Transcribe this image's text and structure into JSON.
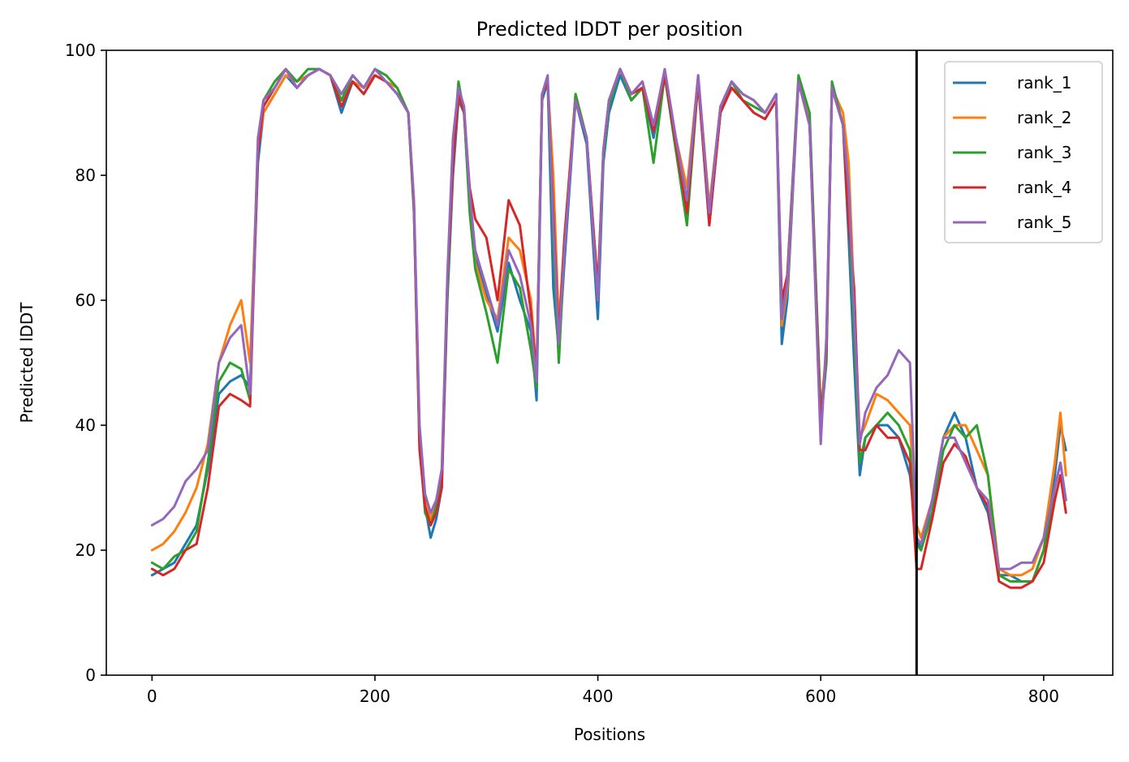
{
  "chart_data": {
    "type": "line",
    "title": "Predicted lDDT per position",
    "xlabel": "Positions",
    "ylabel": "Predicted lDDT",
    "xlim": [
      -41,
      862
    ],
    "ylim": [
      0,
      100
    ],
    "xticks": [
      0,
      200,
      400,
      600,
      800
    ],
    "yticks": [
      0,
      20,
      40,
      60,
      80,
      100
    ],
    "grid": false,
    "legend_position": "top-right",
    "vline": 686,
    "series": [
      {
        "name": "rank_1",
        "color": "#1f77b4",
        "x": [
          0,
          10,
          20,
          30,
          40,
          50,
          60,
          70,
          80,
          88,
          95,
          100,
          110,
          120,
          130,
          140,
          150,
          160,
          170,
          180,
          190,
          200,
          210,
          220,
          230,
          235,
          240,
          245,
          250,
          255,
          260,
          265,
          270,
          275,
          280,
          285,
          290,
          300,
          310,
          320,
          330,
          340,
          345,
          350,
          355,
          360,
          365,
          370,
          380,
          390,
          400,
          405,
          410,
          420,
          430,
          440,
          450,
          460,
          470,
          480,
          490,
          500,
          510,
          520,
          530,
          540,
          550,
          560,
          565,
          570,
          580,
          590,
          600,
          605,
          610,
          620,
          625,
          630,
          635,
          640,
          650,
          660,
          670,
          680,
          686,
          690,
          700,
          710,
          720,
          730,
          740,
          750,
          760,
          770,
          780,
          790,
          800,
          810,
          815,
          820
        ],
        "y": [
          16,
          17,
          18,
          21,
          24,
          33,
          45,
          47,
          48,
          46,
          82,
          90,
          93,
          96,
          94,
          96,
          97,
          96,
          90,
          95,
          93,
          96,
          95,
          93,
          90,
          75,
          38,
          27,
          22,
          25,
          30,
          60,
          80,
          92,
          90,
          75,
          67,
          61,
          55,
          66,
          60,
          55,
          44,
          92,
          95,
          62,
          52,
          66,
          92,
          85,
          57,
          82,
          90,
          96,
          92,
          94,
          86,
          96,
          84,
          75,
          95,
          72,
          90,
          94,
          92,
          90,
          89,
          92,
          53,
          60,
          95,
          88,
          40,
          50,
          94,
          88,
          70,
          50,
          32,
          38,
          40,
          40,
          38,
          32,
          22,
          20,
          28,
          38,
          42,
          38,
          30,
          26,
          16,
          16,
          15,
          15,
          20,
          32,
          40,
          36
        ]
      },
      {
        "name": "rank_2",
        "color": "#ff7f0e",
        "x": [
          0,
          10,
          20,
          30,
          40,
          50,
          60,
          70,
          80,
          88,
          95,
          100,
          110,
          120,
          130,
          140,
          150,
          160,
          170,
          180,
          190,
          200,
          210,
          220,
          230,
          235,
          240,
          245,
          250,
          255,
          260,
          265,
          270,
          275,
          280,
          285,
          290,
          300,
          310,
          320,
          330,
          340,
          345,
          350,
          355,
          360,
          365,
          370,
          380,
          390,
          400,
          405,
          410,
          420,
          430,
          440,
          450,
          460,
          470,
          480,
          490,
          500,
          510,
          520,
          530,
          540,
          550,
          560,
          565,
          570,
          580,
          590,
          600,
          605,
          610,
          620,
          625,
          630,
          635,
          640,
          650,
          660,
          670,
          680,
          686,
          690,
          700,
          710,
          720,
          730,
          740,
          750,
          760,
          770,
          780,
          790,
          800,
          810,
          815,
          820
        ],
        "y": [
          20,
          21,
          23,
          26,
          30,
          37,
          50,
          56,
          60,
          50,
          84,
          90,
          93,
          96,
          95,
          96,
          97,
          96,
          92,
          95,
          94,
          96,
          95,
          94,
          90,
          76,
          38,
          28,
          25,
          28,
          32,
          62,
          82,
          93,
          90,
          76,
          66,
          60,
          57,
          70,
          68,
          60,
          48,
          93,
          95,
          80,
          56,
          70,
          93,
          86,
          62,
          84,
          92,
          97,
          93,
          95,
          88,
          96,
          86,
          78,
          96,
          75,
          91,
          95,
          93,
          92,
          90,
          93,
          56,
          62,
          95,
          89,
          42,
          52,
          94,
          90,
          82,
          60,
          38,
          40,
          45,
          44,
          42,
          40,
          24,
          22,
          28,
          38,
          40,
          40,
          36,
          32,
          17,
          16,
          16,
          17,
          22,
          34,
          42,
          32
        ]
      },
      {
        "name": "rank_3",
        "color": "#2ca02c",
        "x": [
          0,
          10,
          20,
          30,
          40,
          50,
          60,
          70,
          80,
          88,
          95,
          100,
          110,
          120,
          130,
          140,
          150,
          160,
          170,
          180,
          190,
          200,
          210,
          220,
          230,
          235,
          240,
          245,
          250,
          255,
          260,
          265,
          270,
          275,
          280,
          285,
          290,
          300,
          310,
          320,
          330,
          340,
          345,
          350,
          355,
          360,
          365,
          370,
          380,
          390,
          400,
          405,
          410,
          420,
          430,
          440,
          450,
          460,
          470,
          480,
          490,
          500,
          510,
          520,
          530,
          540,
          550,
          560,
          565,
          570,
          580,
          590,
          600,
          605,
          610,
          620,
          625,
          630,
          635,
          640,
          650,
          660,
          670,
          680,
          686,
          690,
          700,
          710,
          720,
          730,
          740,
          750,
          760,
          770,
          780,
          790,
          800,
          810,
          815,
          820
        ],
        "y": [
          18,
          17,
          19,
          20,
          23,
          34,
          47,
          50,
          49,
          44,
          85,
          92,
          95,
          97,
          95,
          97,
          97,
          96,
          92,
          96,
          94,
          97,
          96,
          94,
          90,
          74,
          37,
          26,
          24,
          27,
          31,
          61,
          84,
          95,
          90,
          74,
          65,
          58,
          50,
          65,
          62,
          52,
          46,
          93,
          95,
          70,
          50,
          68,
          93,
          86,
          60,
          83,
          91,
          97,
          92,
          94,
          82,
          96,
          84,
          72,
          95,
          73,
          90,
          95,
          92,
          91,
          90,
          93,
          58,
          64,
          96,
          90,
          42,
          50,
          95,
          88,
          74,
          55,
          34,
          38,
          40,
          42,
          40,
          36,
          21,
          20,
          26,
          36,
          40,
          38,
          40,
          32,
          16,
          15,
          15,
          15,
          20,
          30,
          34,
          28
        ]
      },
      {
        "name": "rank_4",
        "color": "#d62728",
        "x": [
          0,
          10,
          20,
          30,
          40,
          50,
          60,
          70,
          80,
          88,
          95,
          100,
          110,
          120,
          130,
          140,
          150,
          160,
          170,
          180,
          190,
          200,
          210,
          220,
          230,
          235,
          240,
          245,
          250,
          255,
          260,
          265,
          270,
          275,
          280,
          285,
          290,
          300,
          310,
          320,
          330,
          340,
          345,
          350,
          355,
          360,
          365,
          370,
          380,
          390,
          400,
          405,
          410,
          420,
          430,
          440,
          450,
          460,
          470,
          480,
          490,
          500,
          510,
          520,
          530,
          540,
          550,
          560,
          565,
          570,
          580,
          590,
          600,
          605,
          610,
          620,
          625,
          630,
          635,
          640,
          650,
          660,
          670,
          680,
          686,
          690,
          700,
          710,
          720,
          730,
          740,
          750,
          760,
          770,
          780,
          790,
          800,
          810,
          815,
          820
        ],
        "y": [
          17,
          16,
          17,
          20,
          21,
          30,
          43,
          45,
          44,
          43,
          84,
          91,
          94,
          97,
          94,
          96,
          97,
          96,
          91,
          95,
          93,
          96,
          95,
          93,
          90,
          75,
          36,
          27,
          24,
          26,
          30,
          63,
          82,
          93,
          90,
          78,
          73,
          70,
          60,
          76,
          72,
          58,
          48,
          93,
          95,
          74,
          54,
          70,
          92,
          86,
          62,
          84,
          92,
          97,
          93,
          94,
          87,
          96,
          85,
          74,
          95,
          72,
          90,
          94,
          92,
          90,
          89,
          92,
          60,
          64,
          95,
          88,
          40,
          52,
          94,
          88,
          72,
          62,
          36,
          36,
          40,
          38,
          38,
          34,
          17,
          17,
          25,
          34,
          37,
          35,
          30,
          27,
          15,
          14,
          14,
          15,
          18,
          28,
          32,
          26
        ]
      },
      {
        "name": "rank_5",
        "color": "#9467bd",
        "x": [
          0,
          10,
          20,
          30,
          40,
          50,
          60,
          70,
          80,
          88,
          95,
          100,
          110,
          120,
          130,
          140,
          150,
          160,
          170,
          180,
          190,
          200,
          210,
          220,
          230,
          235,
          240,
          245,
          250,
          255,
          260,
          265,
          270,
          275,
          280,
          285,
          290,
          300,
          310,
          320,
          330,
          340,
          345,
          350,
          355,
          360,
          365,
          370,
          380,
          390,
          400,
          405,
          410,
          420,
          430,
          440,
          450,
          460,
          470,
          480,
          490,
          500,
          510,
          520,
          530,
          540,
          550,
          560,
          565,
          570,
          580,
          590,
          600,
          605,
          610,
          620,
          625,
          630,
          635,
          640,
          650,
          660,
          670,
          680,
          686,
          690,
          700,
          710,
          720,
          730,
          740,
          750,
          760,
          770,
          780,
          790,
          800,
          810,
          815,
          820
        ],
        "y": [
          24,
          25,
          27,
          31,
          33,
          36,
          50,
          54,
          56,
          45,
          86,
          92,
          94,
          97,
          94,
          96,
          97,
          96,
          93,
          96,
          94,
          97,
          95,
          93,
          90,
          76,
          40,
          29,
          26,
          28,
          33,
          64,
          86,
          94,
          91,
          77,
          68,
          62,
          56,
          68,
          64,
          56,
          47,
          93,
          96,
          72,
          53,
          68,
          92,
          86,
          60,
          84,
          92,
          97,
          93,
          95,
          88,
          97,
          86,
          76,
          96,
          74,
          91,
          95,
          93,
          92,
          90,
          93,
          57,
          63,
          95,
          88,
          37,
          54,
          94,
          88,
          78,
          58,
          37,
          42,
          46,
          48,
          52,
          50,
          22,
          21,
          28,
          38,
          38,
          34,
          30,
          28,
          17,
          17,
          18,
          18,
          22,
          30,
          34,
          28
        ]
      }
    ]
  }
}
